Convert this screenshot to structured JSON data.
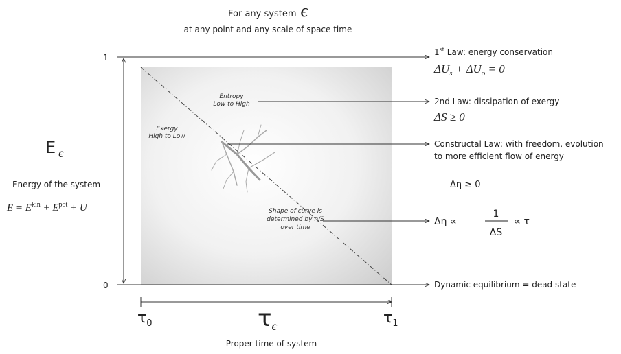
{
  "header": {
    "line1": "For any system",
    "symbol": "ϵ",
    "line2": "at any point and any scale of space time"
  },
  "y_axis": {
    "top": "1",
    "bottom": "0",
    "symbol": "E",
    "subscript": "ϵ",
    "label": "Energy of the system",
    "formula": [
      "E = E",
      "kin",
      " + E",
      "pot",
      " + U"
    ]
  },
  "x_axis": {
    "start": "τ",
    "start_sub": "0",
    "symbol": "τ",
    "symbol_sub": "ϵ",
    "end": "τ",
    "end_sub": "1",
    "label": "Proper time of system"
  },
  "inner_labels": [
    {
      "lines": [
        "Exergy",
        "High to Low"
      ]
    },
    {
      "lines": [
        "Entropy",
        "Low to High"
      ]
    },
    {
      "lines": [
        "Shape of curve is",
        "determined by η/S",
        "over time"
      ]
    }
  ],
  "laws": [
    {
      "title": [
        "1",
        "st",
        " Law: energy conservation"
      ],
      "equation": [
        "ΔU",
        "s",
        " + ΔU",
        "o",
        " = 0"
      ]
    },
    {
      "title": [
        "2nd Law: dissipation of exergy"
      ],
      "equation": [
        "ΔS ≥ 0"
      ]
    },
    {
      "title": [
        "Constructal Law: with freedom, evolution",
        "to more efficient flow of energy"
      ],
      "equation": [
        "Δη ≥ 0"
      ]
    },
    {
      "equation": [
        "Δη ∝",
        "1",
        "ΔS",
        "∝ τ"
      ]
    },
    {
      "title": [
        "Dynamic equilibrium = dead state"
      ]
    }
  ]
}
